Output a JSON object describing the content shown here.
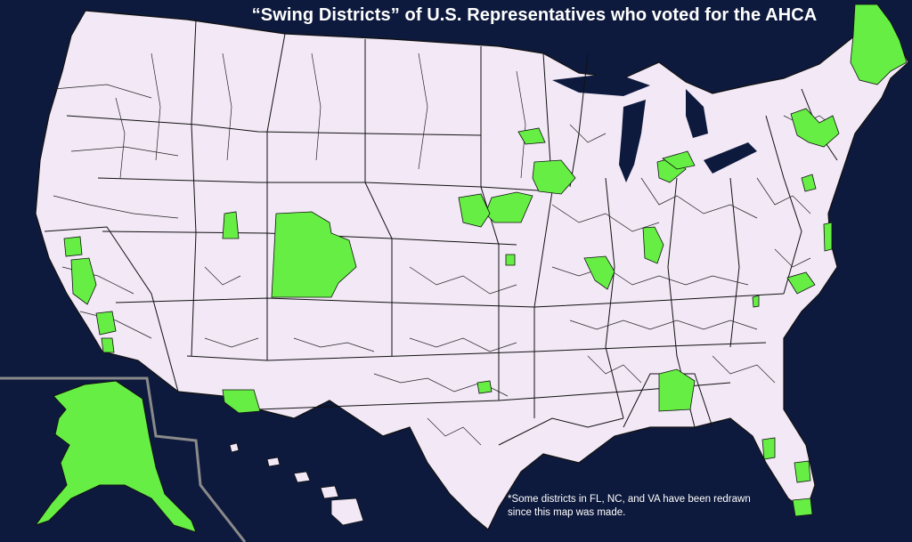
{
  "title": "“Swing Districts” of U.S. Representatives who voted for the AHCA",
  "footnote_line1": "*Some districts in FL, NC, and VA have been redrawn",
  "footnote_line2": "since this map was made.",
  "colors": {
    "ocean": "#0e1a3d",
    "land": "#f2e8f6",
    "district_border": "#1a1a1a",
    "highlight": "#66ee44",
    "inset_border": "#8a8a8a"
  },
  "highlighted_regions": [
    "Alaska",
    "Maine",
    "New York",
    "Pennsylvania",
    "Ohio",
    "Michigan",
    "Wisconsin",
    "Iowa",
    "Nebraska",
    "Kansas",
    "Missouri",
    "Illinois",
    "Indiana",
    "Virginia",
    "North Carolina",
    "Georgia",
    "Florida",
    "Texas",
    "Arizona",
    "Colorado",
    "Utah",
    "California",
    "New Jersey"
  ]
}
